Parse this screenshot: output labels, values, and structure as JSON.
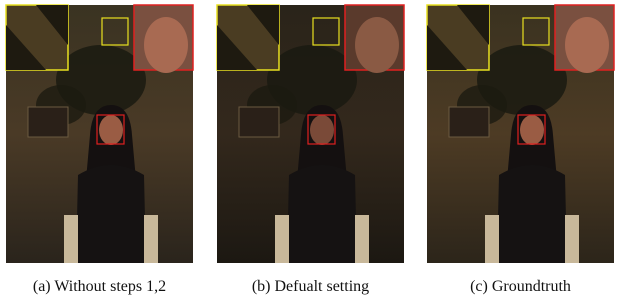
{
  "panels": [
    {
      "caption": "(a) Without steps 1,2"
    },
    {
      "caption": "(b) Defualt setting"
    },
    {
      "caption": "(c) Groundtruth"
    }
  ]
}
